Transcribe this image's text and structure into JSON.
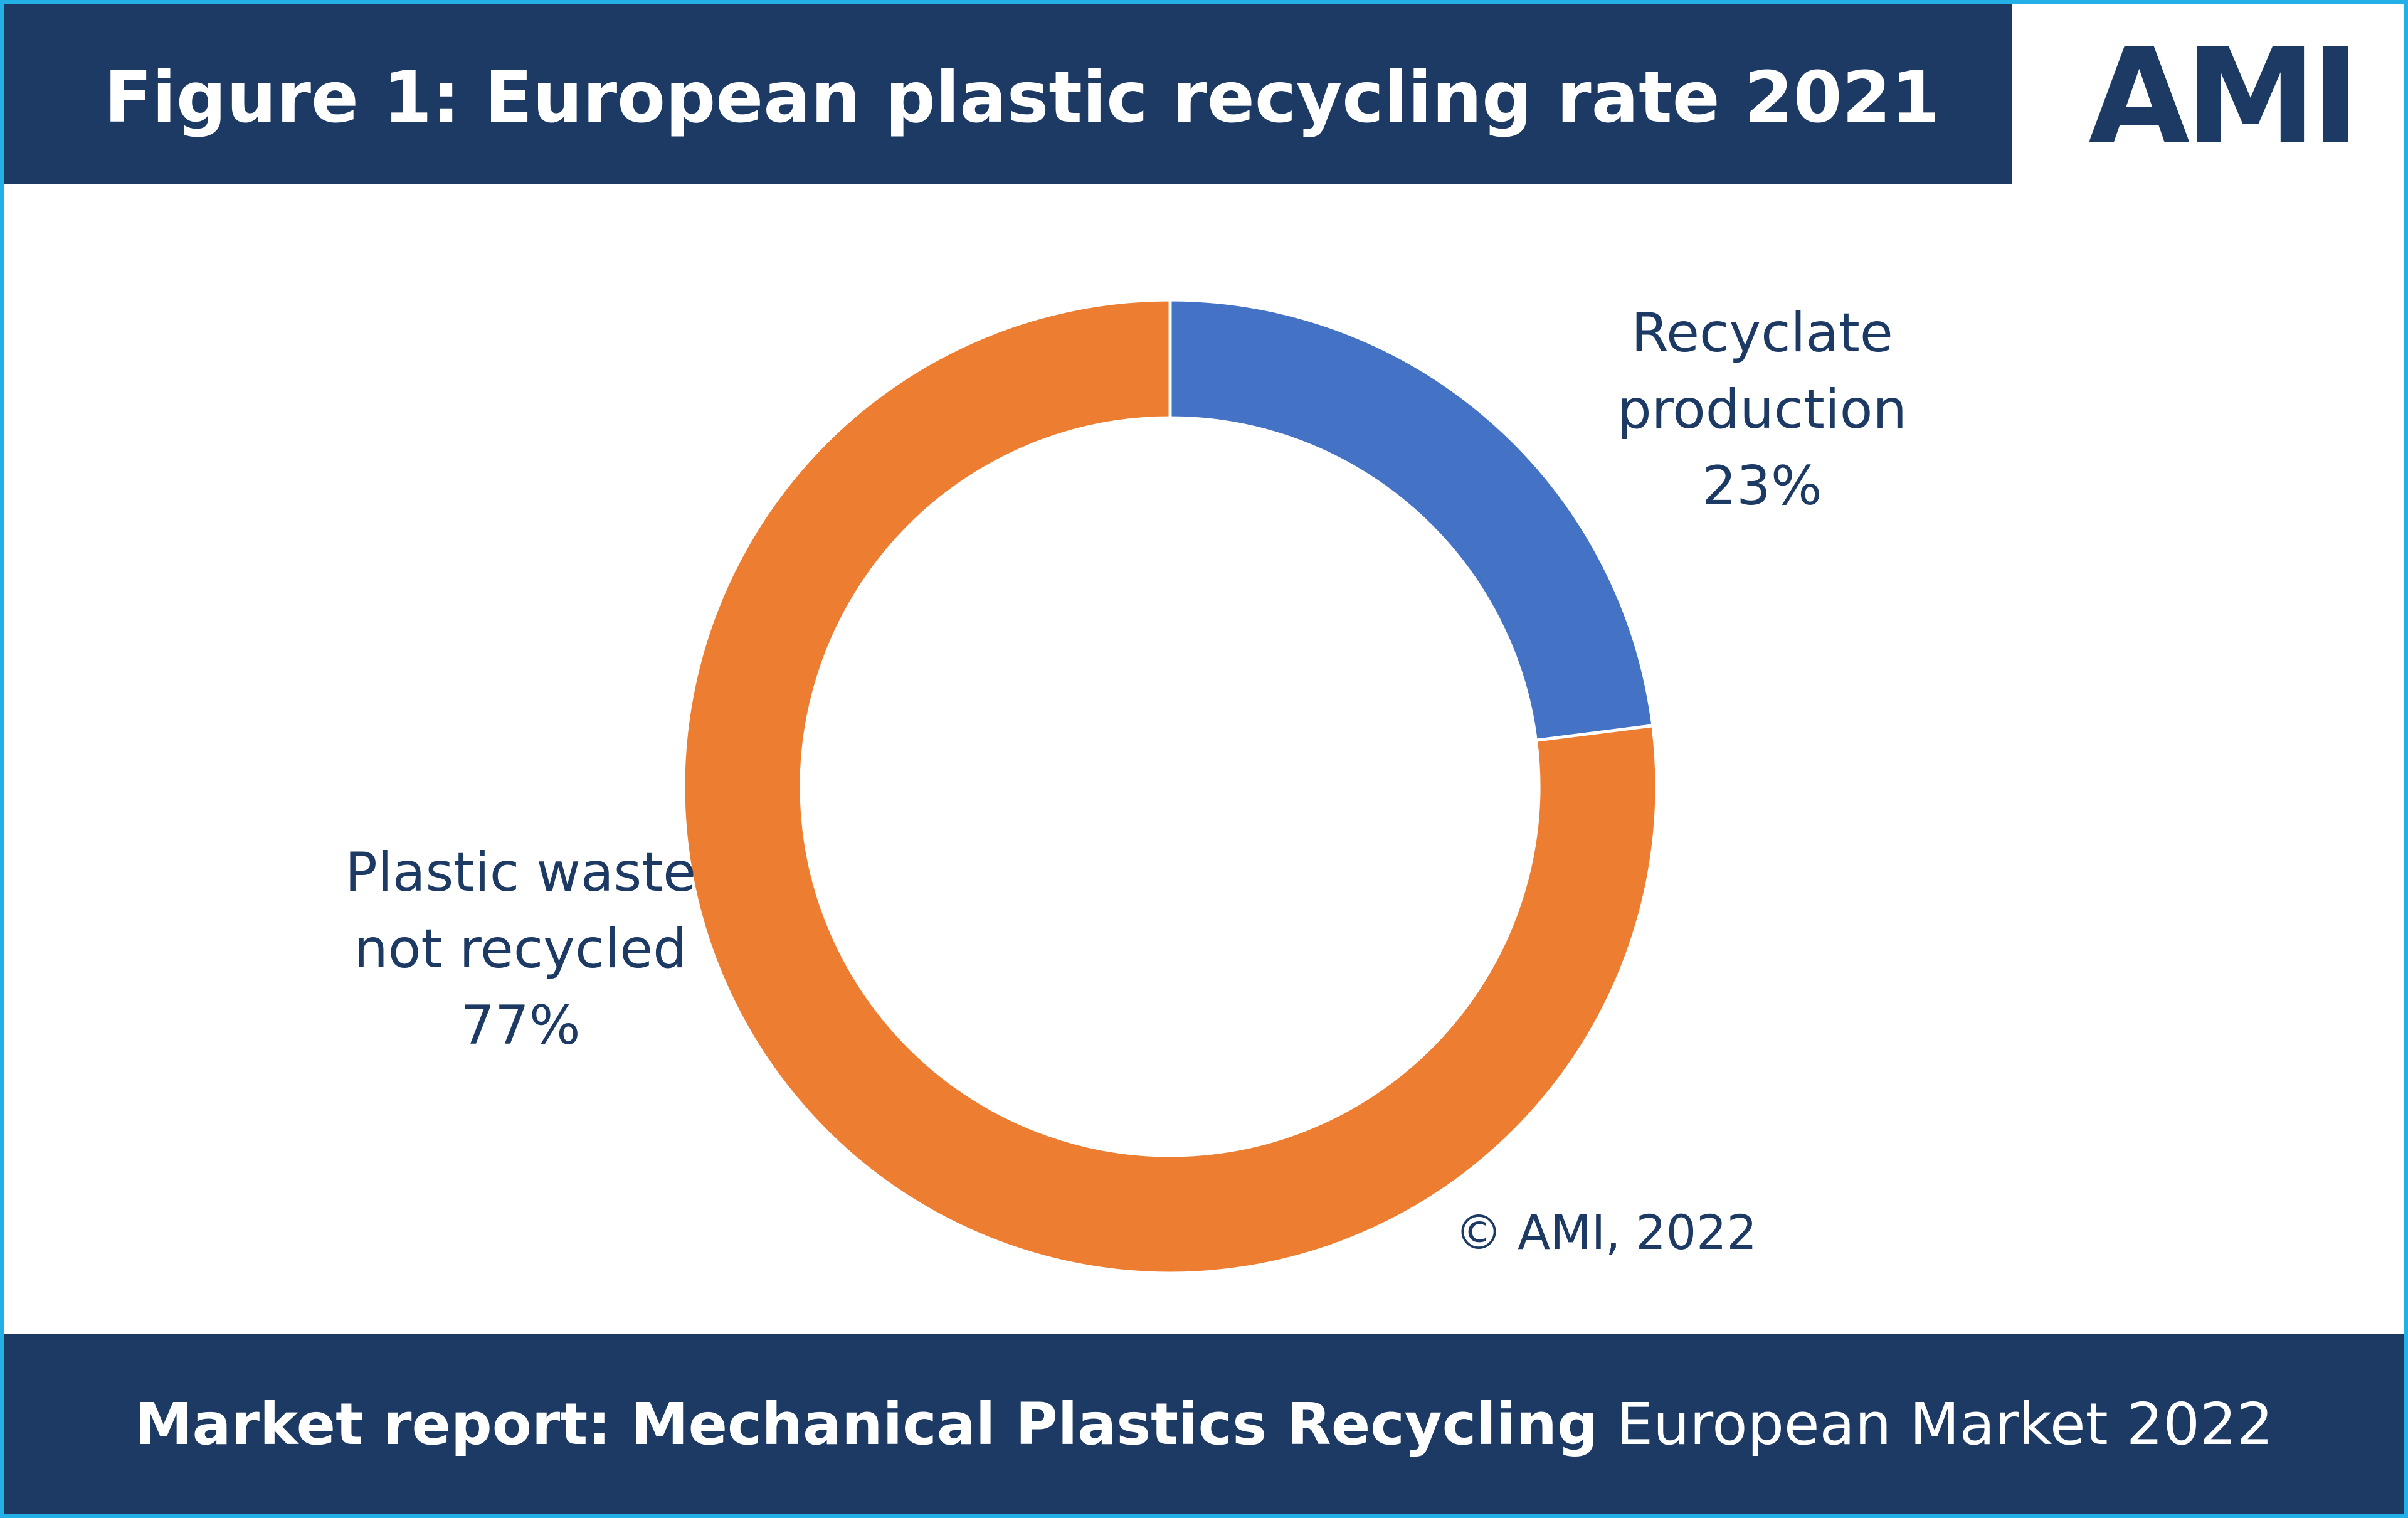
{
  "chart_data": {
    "type": "pie",
    "title": "Figure 1: European plastic recycling rate 2021",
    "logo": "AMI",
    "categories": [
      "Recyclate production",
      "Plastic waste not recycled"
    ],
    "values": [
      23,
      77
    ],
    "value_labels": [
      "23%",
      "77%"
    ],
    "colors": [
      "#4472c4",
      "#ed7d31"
    ],
    "copyright": "© AMI, 2022",
    "footer": {
      "bold": "Market report: Mechanical Plastics Recycling",
      "regular": "European Market 2022"
    }
  }
}
